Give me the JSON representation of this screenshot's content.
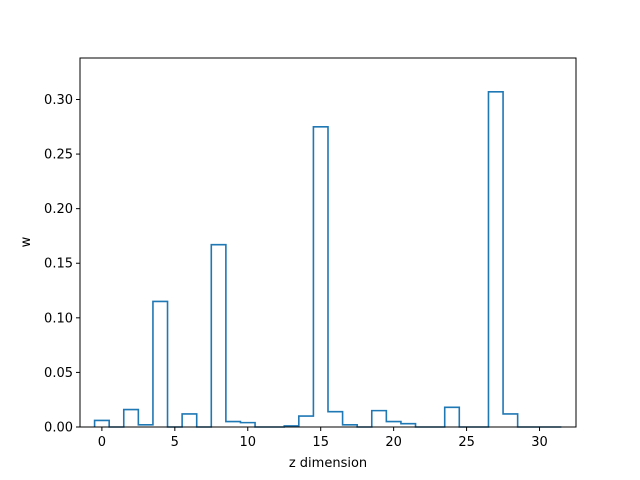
{
  "chart_data": {
    "type": "bar",
    "style": "step-histogram",
    "title": "",
    "xlabel": "z dimension",
    "ylabel": "w",
    "x": [
      0,
      1,
      2,
      3,
      4,
      5,
      6,
      7,
      8,
      9,
      10,
      11,
      12,
      13,
      14,
      15,
      16,
      17,
      18,
      19,
      20,
      21,
      22,
      23,
      24,
      25,
      26,
      27,
      28,
      29,
      30,
      31
    ],
    "values": [
      0.006,
      0.0,
      0.016,
      0.002,
      0.115,
      0.0,
      0.012,
      0.0,
      0.167,
      0.005,
      0.004,
      0.0,
      0.0,
      0.001,
      0.01,
      0.275,
      0.014,
      0.002,
      0.0,
      0.015,
      0.005,
      0.003,
      0.0,
      0.0,
      0.018,
      0.0,
      0.0,
      0.307,
      0.012,
      0.0,
      0.0,
      0.0
    ],
    "xlim": [
      -1.5,
      32.5
    ],
    "ylim": [
      0,
      0.338
    ],
    "xticks": [
      0,
      5,
      10,
      15,
      20,
      25,
      30
    ],
    "xtick_labels": [
      "0",
      "5",
      "10",
      "15",
      "20",
      "25",
      "30"
    ],
    "yticks": [
      0,
      0.05,
      0.1,
      0.15,
      0.2,
      0.25,
      0.3
    ],
    "ytick_labels": [
      "0.00",
      "0.05",
      "0.10",
      "0.15",
      "0.20",
      "0.25",
      "0.30"
    ],
    "grid": false,
    "line_color": "#1f77b4"
  }
}
